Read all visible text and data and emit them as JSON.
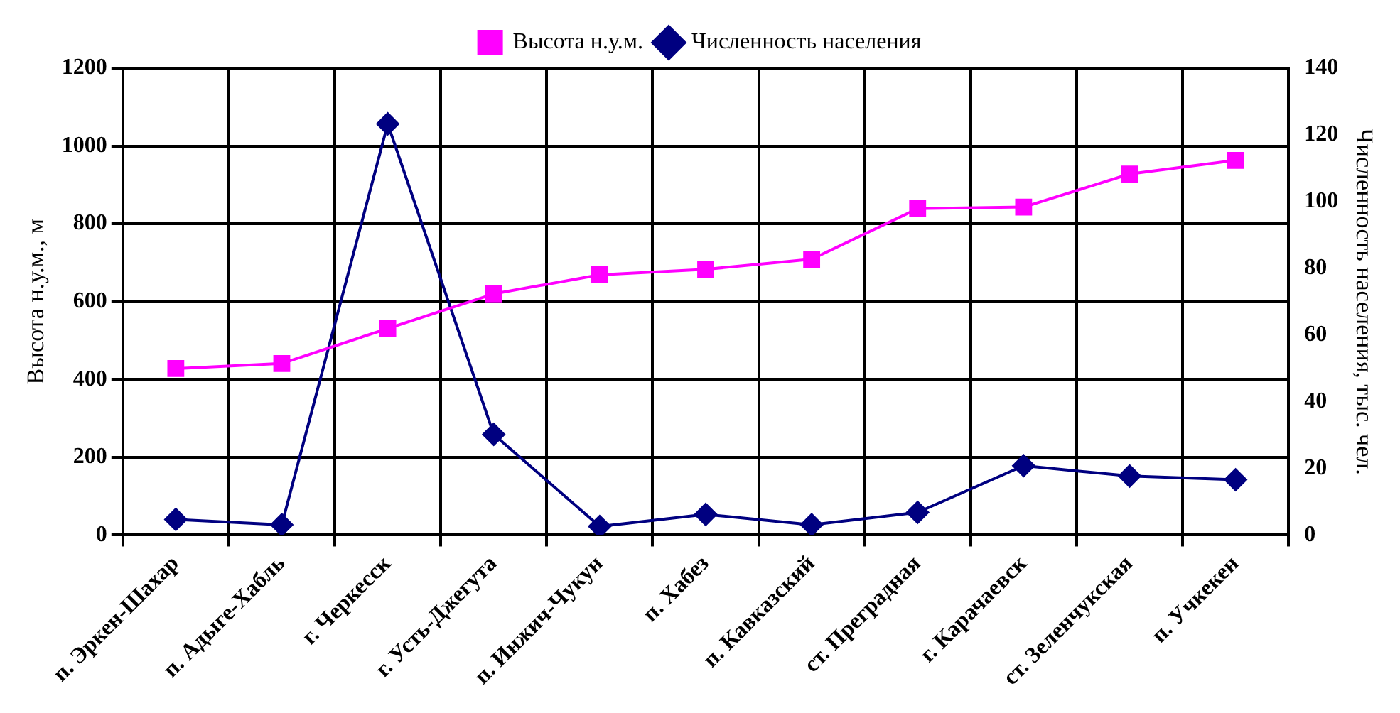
{
  "chart_data": {
    "type": "line",
    "categories": [
      "п. Эркен-Шахар",
      "п. Адыге-Хабль",
      "г. Черкесск",
      "г. Усть-Джегута",
      "п. Инжич-Чукун",
      "п. Хабез",
      "п. Кавказский",
      "ст. Преградная",
      "г. Карачаевск",
      "ст. Зеленчукская",
      "п. Учкекен"
    ],
    "series": [
      {
        "name": "Высота н.у.м.",
        "color": "#ff00ff",
        "marker": "square",
        "values": [
          428,
          441,
          531,
          620,
          669,
          683,
          709,
          839,
          843,
          928,
          963
        ]
      },
      {
        "name": "Численность населения",
        "color": "#000080",
        "marker": "diamond",
        "axis": "y2",
        "values": [
          4.7,
          3.1,
          123.3,
          30.2,
          2.6,
          6.2,
          3.1,
          6.8,
          20.8,
          17.7,
          16.6
        ]
      }
    ],
    "ylabel": "Высота н.у.м., м",
    "y2label": "Численность населения, тыс. чел.",
    "ylim": [
      0,
      1200
    ],
    "yticks": [
      0,
      200,
      400,
      600,
      800,
      1000,
      1200
    ],
    "y2lim": [
      0,
      140
    ],
    "y2ticks": [
      0,
      20,
      40,
      60,
      80,
      100,
      120,
      140
    ],
    "grid": true,
    "legend": "top",
    "line_style": "solid"
  }
}
